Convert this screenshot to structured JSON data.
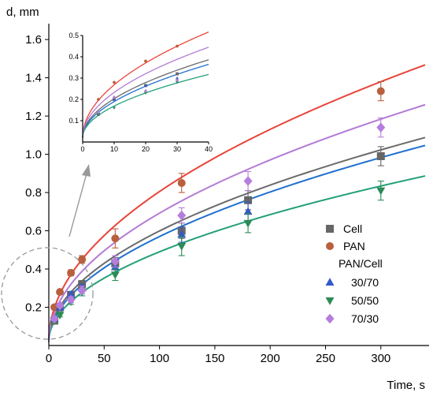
{
  "chart_data": {
    "type": "scatter",
    "title": "",
    "xlabel": "Time, s",
    "ylabel": "d, mm",
    "xlim": [
      0,
      340
    ],
    "ylim": [
      0,
      1.65
    ],
    "xticks": [
      0,
      50,
      100,
      150,
      200,
      250,
      300
    ],
    "yticks": [
      0.2,
      0.4,
      0.6,
      0.8,
      1.0,
      1.2,
      1.4,
      1.6
    ],
    "legend": {
      "placement": "right",
      "group_label": "PAN/Cell",
      "entries": [
        "Cell",
        "PAN",
        "30/70",
        "50/50",
        "70/30"
      ]
    },
    "series": [
      {
        "name": "Cell",
        "marker": "square",
        "color": "#666666",
        "x": [
          5,
          10,
          20,
          30,
          60,
          120,
          180,
          300
        ],
        "y": [
          0.13,
          0.2,
          0.265,
          0.32,
          0.43,
          0.6,
          0.76,
          0.99
        ],
        "err": [
          0.01,
          0.01,
          0.015,
          0.02,
          0.03,
          0.04,
          0.05,
          0.05
        ]
      },
      {
        "name": "PAN",
        "marker": "circle",
        "color": "#b8603e",
        "x": [
          5,
          10,
          20,
          30,
          60,
          120,
          300
        ],
        "y": [
          0.2,
          0.28,
          0.38,
          0.45,
          0.56,
          0.85,
          1.33
        ],
        "err": [
          0.01,
          0.01,
          0.015,
          0.02,
          0.05,
          0.05,
          0.05
        ]
      },
      {
        "name": "30/70",
        "marker": "triangle-up",
        "color": "#3358c9",
        "x": [
          5,
          10,
          20,
          30,
          60,
          120,
          180
        ],
        "y": [
          0.14,
          0.2,
          0.265,
          0.3,
          0.41,
          0.58,
          0.7
        ],
        "err": [
          0.01,
          0.01,
          0.015,
          0.02,
          0.03,
          0.04,
          0.05
        ]
      },
      {
        "name": "50/50",
        "marker": "triangle-down",
        "color": "#2e8b57",
        "x": [
          5,
          10,
          20,
          30,
          60,
          120,
          180,
          300
        ],
        "y": [
          0.13,
          0.16,
          0.23,
          0.28,
          0.37,
          0.52,
          0.64,
          0.81
        ],
        "err": [
          0.01,
          0.01,
          0.015,
          0.02,
          0.03,
          0.05,
          0.05,
          0.05
        ]
      },
      {
        "name": "70/30",
        "marker": "diamond",
        "color": "#b57ddc",
        "x": [
          5,
          10,
          20,
          30,
          60,
          120,
          180,
          300
        ],
        "y": [
          0.14,
          0.21,
          0.24,
          0.29,
          0.44,
          0.68,
          0.86,
          1.14
        ],
        "err": [
          0.01,
          0.01,
          0.015,
          0.02,
          0.03,
          0.04,
          0.05,
          0.05
        ]
      }
    ],
    "fits": [
      {
        "series": "Cell",
        "color": "#6b6b6b",
        "a": 0.0579,
        "b": 0.5
      },
      {
        "series": "PAN",
        "color": "#e8443a",
        "a": 0.0785,
        "b": 0.5
      },
      {
        "series": "30/70",
        "color": "#1f6fd0",
        "a": 0.0525,
        "b": 0.51
      },
      {
        "series": "50/50",
        "color": "#22a07a",
        "a": 0.047,
        "b": 0.5
      },
      {
        "series": "70/30",
        "color": "#b27ad6",
        "a": 0.0672,
        "b": 0.5
      }
    ],
    "inset": {
      "xlim": [
        0,
        40
      ],
      "ylim": [
        0,
        0.5
      ],
      "xticks": [
        0,
        10,
        20,
        30,
        40
      ],
      "yticks": [
        0.1,
        0.2,
        0.3,
        0.4,
        0.5
      ]
    },
    "colors": {
      "axis": "#000000",
      "zoom_circle": "#999999",
      "zoom_arrow": "#999999"
    }
  }
}
